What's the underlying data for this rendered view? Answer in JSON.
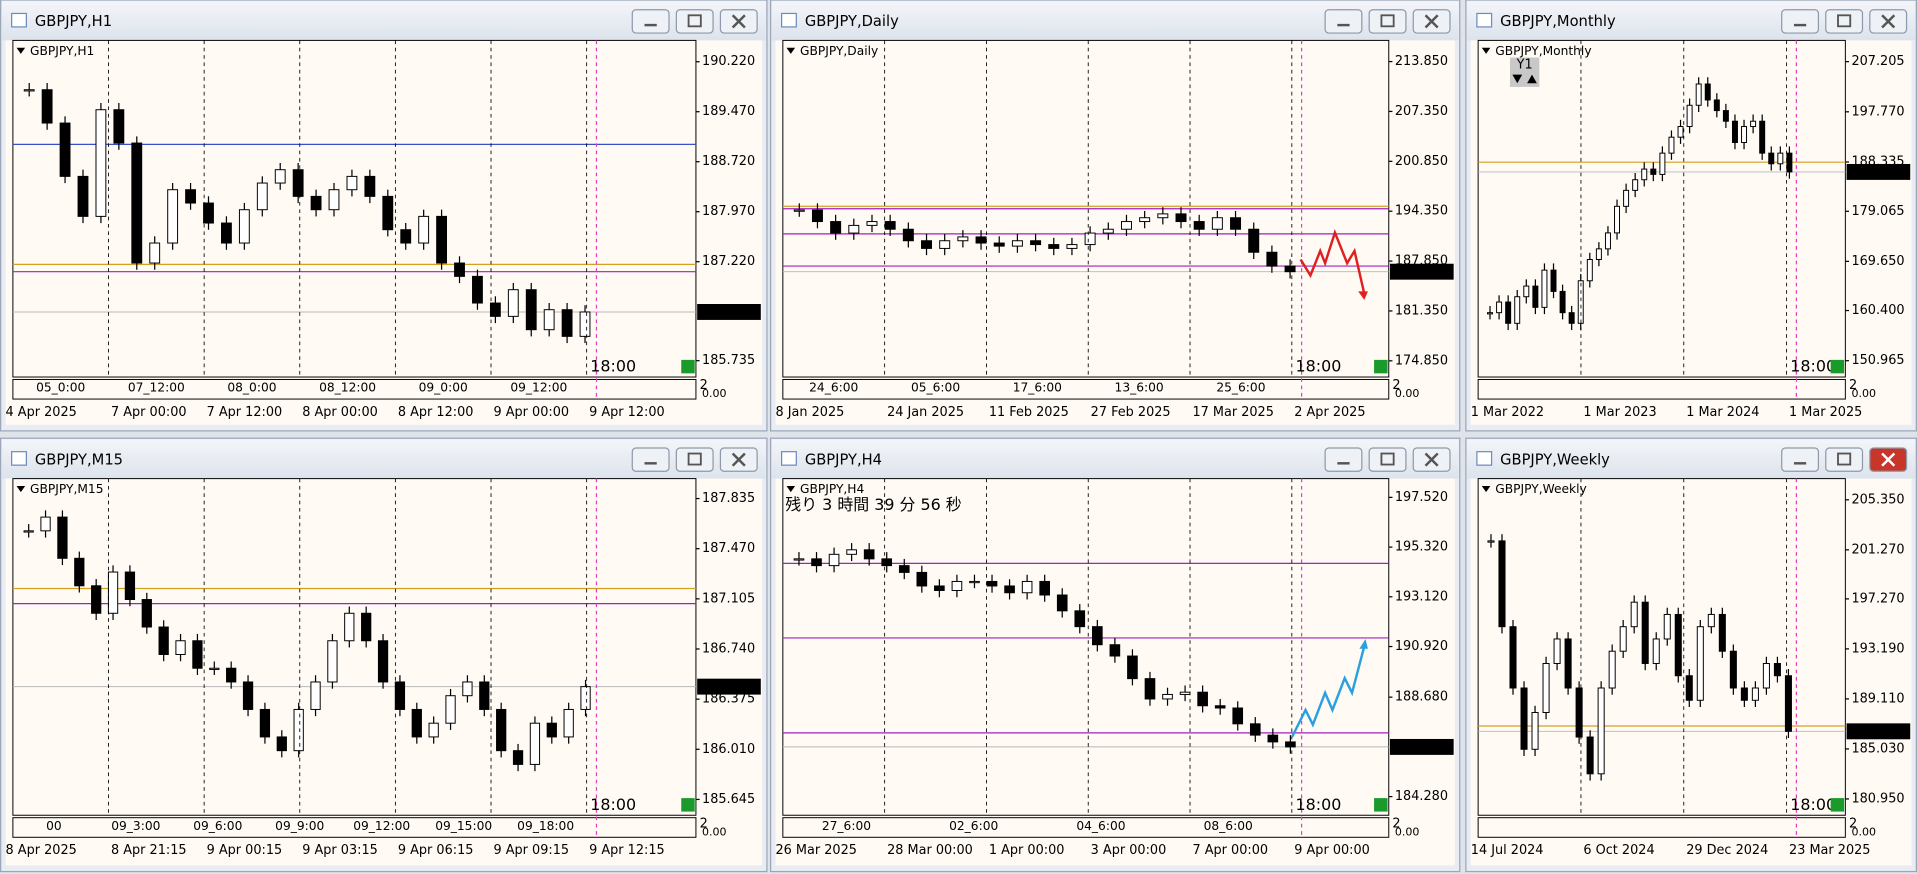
{
  "windows": [
    {
      "title": "GBPJPY,H1",
      "symbol_label": "GBPJPY,H1",
      "active": false,
      "chart": {
        "ylim": [
          185.49,
          190.54
        ],
        "yticks": [
          {
            "value": 190.22,
            "label": "190.220"
          },
          {
            "value": 189.47,
            "label": "189.470"
          },
          {
            "value": 188.72,
            "label": "188.720"
          },
          {
            "value": 187.97,
            "label": "187.970"
          },
          {
            "value": 187.22,
            "label": "187.220"
          },
          {
            "value": 185.735,
            "label": "185.735"
          }
        ],
        "price": {
          "value": 186.466,
          "label": "186.466"
        },
        "levels": [
          {
            "value": 188.98,
            "color": "#3a50c8"
          },
          {
            "value": 187.18,
            "color": "#d4a020"
          },
          {
            "value": 187.07,
            "color": "#a020c0"
          }
        ],
        "closes": [
          189.8,
          189.3,
          188.5,
          187.9,
          189.5,
          189.0,
          187.2,
          187.5,
          188.3,
          188.1,
          187.8,
          187.5,
          188.0,
          188.4,
          188.6,
          188.2,
          188.0,
          188.3,
          188.5,
          188.2,
          187.7,
          187.5,
          187.9,
          187.2,
          187.0,
          186.6,
          186.4,
          186.8,
          186.2,
          186.5,
          186.1,
          186.466
        ],
        "time_labels": [
          "05_0:00",
          "07_12:00",
          "08_0:00",
          "08_12:00",
          "09_0:00",
          "09_12:00"
        ],
        "date_labels": [
          "4 Apr 2025",
          "7 Apr 00:00",
          "7 Apr 12:00",
          "8 Apr 00:00",
          "8 Apr 12:00",
          "9 Apr 00:00",
          "9 Apr 12:00"
        ],
        "close_time": "18:00",
        "sub_scale": [
          "2",
          "0.00"
        ]
      }
    },
    {
      "title": "GBPJPY,Daily",
      "symbol_label": "GBPJPY,Daily",
      "active": false,
      "chart": {
        "ylim": [
          172.74,
          216.61
        ],
        "yticks": [
          {
            "value": 213.85,
            "label": "213.850"
          },
          {
            "value": 207.35,
            "label": "207.350"
          },
          {
            "value": 200.85,
            "label": "200.850"
          },
          {
            "value": 194.35,
            "label": "194.350"
          },
          {
            "value": 187.85,
            "label": "187.850"
          },
          {
            "value": 181.35,
            "label": "181.350"
          },
          {
            "value": 174.85,
            "label": "174.850"
          }
        ],
        "price": {
          "value": 186.466,
          "label": "186.466"
        },
        "levels": [
          {
            "value": 195.0,
            "color": "#d4a020"
          },
          {
            "value": 194.67,
            "color": "#a020c0"
          },
          {
            "value": 191.4,
            "color": "#a020c0"
          },
          {
            "value": 187.2,
            "color": "#a020c0"
          }
        ],
        "closes": [
          194.5,
          193.0,
          191.5,
          192.5,
          193.0,
          192.0,
          190.5,
          189.5,
          190.5,
          191.0,
          190.2,
          189.8,
          190.5,
          190.0,
          189.5,
          190.0,
          191.5,
          192.0,
          193.0,
          193.5,
          194.0,
          193.0,
          192.0,
          193.5,
          192.0,
          189.0,
          187.2,
          186.466
        ],
        "time_labels": [
          "24_6:00",
          "05_6:00",
          "17_6:00",
          "13_6:00",
          "25_6:00"
        ],
        "date_labels": [
          "8 Jan 2025",
          "24 Jan 2025",
          "11 Feb 2025",
          "27 Feb 2025",
          "17 Mar 2025",
          "2 Apr 2025"
        ],
        "close_time": "18:00",
        "sub_scale": [
          "2",
          "0.00"
        ]
      }
    },
    {
      "title": "GBPJPY,Monthly",
      "symbol_label": "GBPJPY,Monthly",
      "active": false,
      "period_button": "Y1",
      "chart": {
        "ylim": [
          147.9,
          211.2
        ],
        "yticks": [
          {
            "value": 207.205,
            "label": "207.205"
          },
          {
            "value": 197.77,
            "label": "197.770"
          },
          {
            "value": 188.335,
            "label": "188.335"
          },
          {
            "value": 179.065,
            "label": "179.065"
          },
          {
            "value": 169.65,
            "label": "169.650"
          },
          {
            "value": 160.4,
            "label": "160.400"
          },
          {
            "value": 150.965,
            "label": "150.965"
          }
        ],
        "price": {
          "value": 186.466,
          "label": "186.466"
        },
        "levels": [
          {
            "value": 188.3,
            "color": "#d4a020"
          }
        ],
        "closes": [
          160,
          162,
          158,
          163,
          165,
          161,
          168,
          164,
          160,
          158,
          166,
          170,
          172,
          175,
          180,
          183,
          185,
          187,
          186,
          190,
          193,
          195,
          199,
          203,
          200,
          198,
          196,
          192,
          195,
          196,
          190,
          188,
          190,
          186.466
        ],
        "time_labels": [],
        "date_labels": [
          "1 Mar 2022",
          "1 Mar 2023",
          "1 Mar 2024",
          "1 Mar 2025"
        ],
        "close_time": "18:00",
        "sub_scale": [
          "2",
          "0.00"
        ]
      }
    },
    {
      "title": "GBPJPY,M15",
      "symbol_label": "GBPJPY,M15",
      "active": false,
      "chart": {
        "ylim": [
          185.53,
          187.98
        ],
        "yticks": [
          {
            "value": 187.835,
            "label": "187.835"
          },
          {
            "value": 187.47,
            "label": "187.470"
          },
          {
            "value": 187.105,
            "label": "187.105"
          },
          {
            "value": 186.74,
            "label": "186.740"
          },
          {
            "value": 186.375,
            "label": "186.375"
          },
          {
            "value": 186.01,
            "label": "186.010"
          },
          {
            "value": 185.645,
            "label": "185.645"
          }
        ],
        "price": {
          "value": 186.466,
          "label": "186.466"
        },
        "levels": [
          {
            "value": 187.18,
            "color": "#d4a020"
          },
          {
            "value": 187.07,
            "color": "#a020c0"
          }
        ],
        "closes": [
          187.6,
          187.7,
          187.4,
          187.2,
          187.0,
          187.3,
          187.1,
          186.9,
          186.7,
          186.8,
          186.6,
          186.6,
          186.5,
          186.3,
          186.1,
          186.0,
          186.3,
          186.5,
          186.8,
          187.0,
          186.8,
          186.5,
          186.3,
          186.1,
          186.2,
          186.4,
          186.5,
          186.3,
          186.0,
          185.9,
          186.2,
          186.1,
          186.3,
          186.466
        ],
        "time_labels": [
          "00",
          "09_3:00",
          "09_6:00",
          "09_9:00",
          "09_12:00",
          "09_15:00",
          "09_18:00"
        ],
        "date_labels": [
          "8 Apr 2025",
          "8 Apr 21:15",
          "9 Apr 00:15",
          "9 Apr 03:15",
          "9 Apr 06:15",
          "9 Apr 09:15",
          "9 Apr 12:15"
        ],
        "close_time": "18:00",
        "sub_scale": [
          "2",
          "0.00"
        ]
      }
    },
    {
      "title": "GBPJPY,H4",
      "symbol_label": "GBPJPY,H4",
      "active": false,
      "countdown": "残り 3 時間 39 分 56 秒",
      "chart": {
        "ylim": [
          183.455,
          198.35
        ],
        "yticks": [
          {
            "value": 197.52,
            "label": "197.520"
          },
          {
            "value": 195.32,
            "label": "195.320"
          },
          {
            "value": 193.12,
            "label": "193.120"
          },
          {
            "value": 190.92,
            "label": "190.920"
          },
          {
            "value": 188.68,
            "label": "188.680"
          },
          {
            "value": 184.28,
            "label": "184.280"
          }
        ],
        "price": {
          "value": 186.478,
          "label": "186.478"
        },
        "levels": [
          {
            "value": 194.6,
            "color": "#a020c0"
          },
          {
            "value": 191.3,
            "color": "#a020c0"
          },
          {
            "value": 187.1,
            "color": "#a020c0"
          }
        ],
        "closes": [
          194.8,
          194.5,
          195.0,
          195.2,
          194.8,
          194.5,
          194.2,
          193.6,
          193.4,
          193.8,
          193.8,
          193.6,
          193.3,
          193.8,
          193.2,
          192.5,
          191.8,
          191.0,
          190.5,
          189.5,
          188.6,
          188.8,
          188.9,
          188.3,
          188.2,
          187.5,
          187.0,
          186.7,
          186.478
        ],
        "time_labels": [
          "27_6:00",
          "02_6:00",
          "04_6:00",
          "08_6:00"
        ],
        "date_labels": [
          "26 Mar 2025",
          "28 Mar 00:00",
          "1 Apr 00:00",
          "3 Apr 00:00",
          "7 Apr 00:00",
          "9 Apr 00:00"
        ],
        "close_time": "18:00",
        "sub_scale": [
          "2",
          "0.00"
        ]
      }
    },
    {
      "title": "GBPJPY,Weekly",
      "symbol_label": "GBPJPY,Weekly",
      "active": true,
      "chart": {
        "ylim": [
          179.62,
          207.08
        ],
        "yticks": [
          {
            "value": 205.35,
            "label": "205.350"
          },
          {
            "value": 201.27,
            "label": "201.270"
          },
          {
            "value": 197.27,
            "label": "197.270"
          },
          {
            "value": 193.19,
            "label": "193.190"
          },
          {
            "value": 189.11,
            "label": "189.110"
          },
          {
            "value": 185.03,
            "label": "185.030"
          },
          {
            "value": 180.95,
            "label": "180.950"
          }
        ],
        "price": {
          "value": 186.466,
          "label": "186.466"
        },
        "levels": [
          {
            "value": 186.9,
            "color": "#d4a020"
          }
        ],
        "closes": [
          202,
          195,
          190,
          185,
          188,
          192,
          194,
          190,
          186,
          183,
          190,
          193,
          195,
          197,
          192,
          194,
          196,
          191,
          189,
          195,
          196,
          193,
          190,
          189,
          190,
          192,
          191,
          186.466
        ],
        "time_labels": [],
        "date_labels": [
          "14 Jul 2024",
          "6 Oct 2024",
          "29 Dec 2024",
          "23 Mar 2025"
        ],
        "close_time": "18:00",
        "sub_scale": [
          "2",
          "0.00"
        ]
      }
    }
  ]
}
